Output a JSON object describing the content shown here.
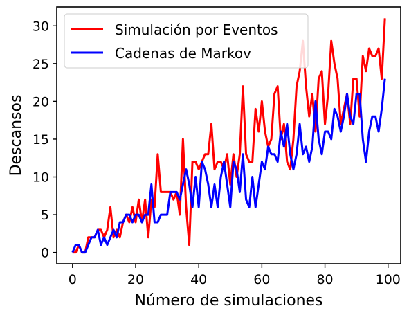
{
  "chart_data": {
    "type": "line",
    "title": "",
    "xlabel": "Número de simulaciones",
    "ylabel": "Descansos",
    "xlim": [
      -5,
      104
    ],
    "ylim": [
      -1.5,
      32.5
    ],
    "xticks": [
      0,
      20,
      40,
      60,
      80,
      100
    ],
    "yticks": [
      0,
      5,
      10,
      15,
      20,
      25,
      30
    ],
    "grid": false,
    "legend_position": "top-left",
    "x": [
      0,
      1,
      2,
      3,
      4,
      5,
      6,
      7,
      8,
      9,
      10,
      11,
      12,
      13,
      14,
      15,
      16,
      17,
      18,
      19,
      20,
      21,
      22,
      23,
      24,
      25,
      26,
      27,
      28,
      29,
      30,
      31,
      32,
      33,
      34,
      35,
      36,
      37,
      38,
      39,
      40,
      41,
      42,
      43,
      44,
      45,
      46,
      47,
      48,
      49,
      50,
      51,
      52,
      53,
      54,
      55,
      56,
      57,
      58,
      59,
      60,
      61,
      62,
      63,
      64,
      65,
      66,
      67,
      68,
      69,
      70,
      71,
      72,
      73,
      74,
      75,
      76,
      77,
      78,
      79,
      80,
      81,
      82,
      83,
      84,
      85,
      86,
      87,
      88,
      89,
      90,
      91,
      92,
      93,
      94,
      95,
      96,
      97,
      98,
      99
    ],
    "series": [
      {
        "name": "Simulación por Eventos",
        "color": "#ff0000",
        "values": [
          0,
          0,
          1,
          0,
          0,
          2,
          2,
          2,
          3,
          3,
          2,
          3,
          6,
          2,
          3,
          2,
          4,
          5,
          4,
          6,
          4,
          7,
          4,
          7,
          2,
          7,
          6,
          13,
          8,
          8,
          8,
          8,
          7,
          8,
          5,
          15,
          6,
          1,
          12,
          12,
          11,
          12,
          13,
          13,
          17,
          11,
          12,
          12,
          11,
          13,
          9,
          13,
          10,
          13,
          22,
          13,
          12,
          12,
          19,
          16,
          20,
          16,
          14,
          15,
          21,
          22,
          15,
          17,
          12,
          11,
          15,
          22,
          24,
          28,
          22,
          18,
          21,
          16,
          23,
          24,
          17,
          21,
          28,
          25,
          23,
          17,
          19,
          21,
          17,
          23,
          23,
          18,
          26,
          24,
          27,
          26,
          26,
          27,
          23,
          31
        ]
      },
      {
        "name": "Cadenas de Markov",
        "color": "#0000ff",
        "values": [
          0,
          1,
          1,
          0,
          0,
          1,
          2,
          2,
          3,
          1,
          2,
          1,
          2,
          3,
          2,
          4,
          4,
          5,
          5,
          4,
          5,
          5,
          4,
          5,
          5,
          9,
          4,
          4,
          5,
          5,
          5,
          8,
          8,
          8,
          7,
          9,
          11,
          9,
          6,
          10,
          6,
          12,
          11,
          9,
          6,
          9,
          6,
          10,
          12,
          9,
          6,
          12,
          11,
          8,
          13,
          7,
          6,
          10,
          6,
          9,
          12,
          11,
          14,
          13,
          13,
          12,
          16,
          14,
          17,
          13,
          11,
          13,
          17,
          13,
          14,
          12,
          14,
          20,
          15,
          13,
          16,
          16,
          15,
          19,
          18,
          16,
          18,
          21,
          18,
          17,
          21,
          21,
          15,
          12,
          16,
          18,
          18,
          16,
          19,
          23
        ]
      }
    ]
  }
}
